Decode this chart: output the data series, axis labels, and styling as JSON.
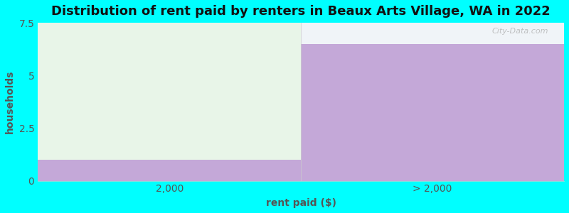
{
  "categories": [
    "2,000",
    "> 2,000"
  ],
  "bar1_value": 1.0,
  "bar2_value": 6.5,
  "bar1_green_color": "#e8f5e8",
  "bar1_purple_color": "#c4a8d8",
  "bar2_purple_color": "#c4a8d8",
  "top_area_color": "#f0f4f8",
  "title": "Distribution of rent paid by renters in Beaux Arts Village, WA in 2022",
  "xlabel": "rent paid ($)",
  "ylabel": "households",
  "ylim": [
    0,
    7.5
  ],
  "yticks": [
    0,
    2.5,
    5,
    7.5
  ],
  "background_color": "#00ffff",
  "title_fontsize": 13,
  "label_fontsize": 10,
  "tick_fontsize": 10,
  "grid_color": "#e0b0e8",
  "watermark": "City-Data.com"
}
